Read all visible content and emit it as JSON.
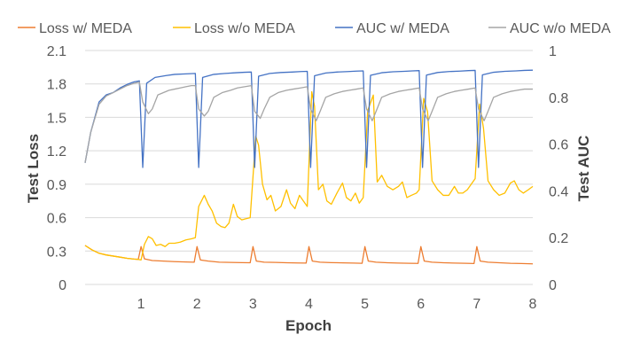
{
  "chart_data": {
    "type": "line",
    "xlabel": "Epoch",
    "ylabel_left": "Test Loss",
    "ylabel_right": "Test AUC",
    "xlim": [
      0,
      8
    ],
    "ylim_left": [
      0,
      2.1
    ],
    "ylim_right": [
      0,
      1
    ],
    "x_ticks": [
      "1",
      "2",
      "3",
      "4",
      "5",
      "6",
      "7",
      "8"
    ],
    "y_left_ticks": [
      "0",
      "0.3",
      "0.6",
      "0.9",
      "1.2",
      "1.5",
      "1.8",
      "2.1"
    ],
    "y_right_ticks": [
      "0",
      "0.2",
      "0.4",
      "0.6",
      "0.8",
      "1"
    ],
    "grid": "horizontal",
    "legend_position": "top",
    "colors": {
      "loss_w": "#ED7D31",
      "loss_wo": "#FFC000",
      "auc_w": "#4472C4",
      "auc_wo": "#A5A5A5",
      "grid": "#D9D9D9"
    },
    "series": [
      {
        "name": "Loss w/ MEDA",
        "axis": "left",
        "color": "#ED7D31",
        "points": [
          [
            0,
            0.35
          ],
          [
            0.125,
            0.31
          ],
          [
            0.25,
            0.28
          ],
          [
            0.375,
            0.265
          ],
          [
            0.5,
            0.255
          ],
          [
            0.625,
            0.245
          ],
          [
            0.75,
            0.235
          ],
          [
            0.875,
            0.228
          ],
          [
            0.95,
            0.225
          ],
          [
            1.0,
            0.34
          ],
          [
            1.06,
            0.23
          ],
          [
            1.2,
            0.215
          ],
          [
            1.4,
            0.21
          ],
          [
            1.6,
            0.205
          ],
          [
            1.8,
            0.202
          ],
          [
            1.95,
            0.2
          ],
          [
            2.0,
            0.34
          ],
          [
            2.06,
            0.22
          ],
          [
            2.2,
            0.21
          ],
          [
            2.4,
            0.2
          ],
          [
            2.6,
            0.198
          ],
          [
            2.8,
            0.196
          ],
          [
            2.95,
            0.195
          ],
          [
            3.0,
            0.34
          ],
          [
            3.06,
            0.21
          ],
          [
            3.2,
            0.2
          ],
          [
            3.4,
            0.198
          ],
          [
            3.6,
            0.195
          ],
          [
            3.8,
            0.193
          ],
          [
            3.95,
            0.192
          ],
          [
            4.0,
            0.34
          ],
          [
            4.06,
            0.21
          ],
          [
            4.2,
            0.2
          ],
          [
            4.4,
            0.196
          ],
          [
            4.6,
            0.194
          ],
          [
            4.8,
            0.192
          ],
          [
            4.95,
            0.19
          ],
          [
            5.0,
            0.34
          ],
          [
            5.06,
            0.21
          ],
          [
            5.2,
            0.2
          ],
          [
            5.4,
            0.195
          ],
          [
            5.6,
            0.192
          ],
          [
            5.8,
            0.19
          ],
          [
            5.95,
            0.189
          ],
          [
            6.0,
            0.34
          ],
          [
            6.06,
            0.21
          ],
          [
            6.2,
            0.2
          ],
          [
            6.4,
            0.195
          ],
          [
            6.6,
            0.192
          ],
          [
            6.8,
            0.19
          ],
          [
            6.95,
            0.188
          ],
          [
            7.0,
            0.34
          ],
          [
            7.06,
            0.21
          ],
          [
            7.2,
            0.2
          ],
          [
            7.4,
            0.195
          ],
          [
            7.6,
            0.19
          ],
          [
            7.8,
            0.188
          ],
          [
            8.0,
            0.185
          ]
        ]
      },
      {
        "name": "Loss w/o MEDA",
        "axis": "left",
        "color": "#FFC000",
        "points": [
          [
            0,
            0.35
          ],
          [
            0.125,
            0.31
          ],
          [
            0.25,
            0.28
          ],
          [
            0.375,
            0.265
          ],
          [
            0.5,
            0.255
          ],
          [
            0.625,
            0.245
          ],
          [
            0.75,
            0.235
          ],
          [
            0.875,
            0.228
          ],
          [
            0.95,
            0.225
          ],
          [
            1.0,
            0.22
          ],
          [
            1.06,
            0.36
          ],
          [
            1.13,
            0.43
          ],
          [
            1.2,
            0.41
          ],
          [
            1.27,
            0.35
          ],
          [
            1.35,
            0.36
          ],
          [
            1.43,
            0.34
          ],
          [
            1.5,
            0.37
          ],
          [
            1.6,
            0.37
          ],
          [
            1.7,
            0.38
          ],
          [
            1.8,
            0.4
          ],
          [
            1.9,
            0.41
          ],
          [
            1.97,
            0.42
          ],
          [
            2.03,
            0.7
          ],
          [
            2.13,
            0.8
          ],
          [
            2.2,
            0.72
          ],
          [
            2.27,
            0.66
          ],
          [
            2.35,
            0.55
          ],
          [
            2.43,
            0.52
          ],
          [
            2.5,
            0.51
          ],
          [
            2.57,
            0.55
          ],
          [
            2.65,
            0.72
          ],
          [
            2.72,
            0.61
          ],
          [
            2.8,
            0.58
          ],
          [
            2.87,
            0.59
          ],
          [
            2.95,
            0.6
          ],
          [
            3.05,
            1.33
          ],
          [
            3.1,
            1.25
          ],
          [
            3.17,
            0.9
          ],
          [
            3.25,
            0.76
          ],
          [
            3.32,
            0.8
          ],
          [
            3.4,
            0.66
          ],
          [
            3.5,
            0.7
          ],
          [
            3.6,
            0.85
          ],
          [
            3.67,
            0.73
          ],
          [
            3.75,
            0.68
          ],
          [
            3.83,
            0.8
          ],
          [
            3.9,
            0.75
          ],
          [
            3.97,
            0.7
          ],
          [
            4.05,
            1.73
          ],
          [
            4.1,
            1.6
          ],
          [
            4.17,
            0.85
          ],
          [
            4.25,
            0.9
          ],
          [
            4.32,
            0.75
          ],
          [
            4.4,
            0.72
          ],
          [
            4.5,
            0.82
          ],
          [
            4.6,
            0.91
          ],
          [
            4.67,
            0.78
          ],
          [
            4.75,
            0.75
          ],
          [
            4.83,
            0.82
          ],
          [
            4.9,
            0.73
          ],
          [
            4.97,
            0.78
          ],
          [
            5.05,
            1.56
          ],
          [
            5.15,
            1.7
          ],
          [
            5.22,
            0.92
          ],
          [
            5.3,
            0.98
          ],
          [
            5.4,
            0.88
          ],
          [
            5.5,
            0.85
          ],
          [
            5.6,
            0.88
          ],
          [
            5.67,
            0.92
          ],
          [
            5.75,
            0.78
          ],
          [
            5.83,
            0.8
          ],
          [
            5.92,
            0.82
          ],
          [
            5.97,
            0.85
          ],
          [
            6.05,
            1.67
          ],
          [
            6.12,
            1.55
          ],
          [
            6.2,
            0.93
          ],
          [
            6.3,
            0.85
          ],
          [
            6.4,
            0.8
          ],
          [
            6.5,
            0.8
          ],
          [
            6.6,
            0.88
          ],
          [
            6.67,
            0.82
          ],
          [
            6.75,
            0.82
          ],
          [
            6.83,
            0.85
          ],
          [
            6.9,
            0.9
          ],
          [
            6.97,
            0.95
          ],
          [
            7.05,
            1.62
          ],
          [
            7.12,
            1.4
          ],
          [
            7.2,
            0.93
          ],
          [
            7.3,
            0.85
          ],
          [
            7.4,
            0.8
          ],
          [
            7.5,
            0.82
          ],
          [
            7.6,
            0.91
          ],
          [
            7.67,
            0.93
          ],
          [
            7.75,
            0.85
          ],
          [
            7.83,
            0.82
          ],
          [
            7.92,
            0.85
          ],
          [
            8.0,
            0.88
          ]
        ]
      },
      {
        "name": "AUC w/ MEDA",
        "axis": "right",
        "color": "#4472C4",
        "points": [
          [
            0,
            0.52
          ],
          [
            0.1,
            0.65
          ],
          [
            0.25,
            0.78
          ],
          [
            0.375,
            0.81
          ],
          [
            0.5,
            0.82
          ],
          [
            0.625,
            0.84
          ],
          [
            0.75,
            0.855
          ],
          [
            0.875,
            0.866
          ],
          [
            0.97,
            0.87
          ],
          [
            1.03,
            0.5
          ],
          [
            1.1,
            0.86
          ],
          [
            1.25,
            0.885
          ],
          [
            1.45,
            0.893
          ],
          [
            1.6,
            0.898
          ],
          [
            1.8,
            0.9
          ],
          [
            1.97,
            0.902
          ],
          [
            2.03,
            0.5
          ],
          [
            2.1,
            0.885
          ],
          [
            2.3,
            0.898
          ],
          [
            2.5,
            0.902
          ],
          [
            2.7,
            0.905
          ],
          [
            2.85,
            0.907
          ],
          [
            2.97,
            0.908
          ],
          [
            3.03,
            0.5
          ],
          [
            3.1,
            0.89
          ],
          [
            3.3,
            0.902
          ],
          [
            3.5,
            0.906
          ],
          [
            3.7,
            0.908
          ],
          [
            3.85,
            0.91
          ],
          [
            3.97,
            0.911
          ],
          [
            4.03,
            0.5
          ],
          [
            4.1,
            0.892
          ],
          [
            4.3,
            0.904
          ],
          [
            4.5,
            0.908
          ],
          [
            4.7,
            0.91
          ],
          [
            4.85,
            0.912
          ],
          [
            4.97,
            0.913
          ],
          [
            5.03,
            0.5
          ],
          [
            5.1,
            0.894
          ],
          [
            5.3,
            0.905
          ],
          [
            5.5,
            0.909
          ],
          [
            5.7,
            0.911
          ],
          [
            5.85,
            0.913
          ],
          [
            5.97,
            0.914
          ],
          [
            6.03,
            0.5
          ],
          [
            6.1,
            0.895
          ],
          [
            6.3,
            0.906
          ],
          [
            6.5,
            0.91
          ],
          [
            6.7,
            0.912
          ],
          [
            6.85,
            0.914
          ],
          [
            6.97,
            0.915
          ],
          [
            7.03,
            0.5
          ],
          [
            7.1,
            0.896
          ],
          [
            7.3,
            0.907
          ],
          [
            7.5,
            0.911
          ],
          [
            7.7,
            0.913
          ],
          [
            7.85,
            0.915
          ],
          [
            8.0,
            0.916
          ]
        ]
      },
      {
        "name": "AUC w/o MEDA",
        "axis": "right",
        "color": "#A5A5A5",
        "points": [
          [
            0,
            0.52
          ],
          [
            0.1,
            0.65
          ],
          [
            0.25,
            0.77
          ],
          [
            0.375,
            0.805
          ],
          [
            0.5,
            0.82
          ],
          [
            0.625,
            0.835
          ],
          [
            0.75,
            0.85
          ],
          [
            0.875,
            0.86
          ],
          [
            0.97,
            0.865
          ],
          [
            1.03,
            0.78
          ],
          [
            1.13,
            0.73
          ],
          [
            1.2,
            0.75
          ],
          [
            1.3,
            0.81
          ],
          [
            1.4,
            0.82
          ],
          [
            1.5,
            0.83
          ],
          [
            1.6,
            0.835
          ],
          [
            1.7,
            0.84
          ],
          [
            1.8,
            0.845
          ],
          [
            1.9,
            0.85
          ],
          [
            1.97,
            0.85
          ],
          [
            2.03,
            0.75
          ],
          [
            2.13,
            0.72
          ],
          [
            2.2,
            0.74
          ],
          [
            2.3,
            0.8
          ],
          [
            2.45,
            0.82
          ],
          [
            2.6,
            0.83
          ],
          [
            2.72,
            0.84
          ],
          [
            2.85,
            0.845
          ],
          [
            2.97,
            0.85
          ],
          [
            3.03,
            0.74
          ],
          [
            3.13,
            0.71
          ],
          [
            3.2,
            0.75
          ],
          [
            3.3,
            0.8
          ],
          [
            3.45,
            0.82
          ],
          [
            3.6,
            0.83
          ],
          [
            3.72,
            0.835
          ],
          [
            3.85,
            0.84
          ],
          [
            3.97,
            0.845
          ],
          [
            4.03,
            0.75
          ],
          [
            4.13,
            0.7
          ],
          [
            4.2,
            0.74
          ],
          [
            4.3,
            0.8
          ],
          [
            4.45,
            0.815
          ],
          [
            4.6,
            0.825
          ],
          [
            4.72,
            0.83
          ],
          [
            4.85,
            0.835
          ],
          [
            4.97,
            0.84
          ],
          [
            5.03,
            0.75
          ],
          [
            5.13,
            0.7
          ],
          [
            5.2,
            0.74
          ],
          [
            5.3,
            0.8
          ],
          [
            5.45,
            0.815
          ],
          [
            5.6,
            0.825
          ],
          [
            5.72,
            0.83
          ],
          [
            5.85,
            0.835
          ],
          [
            5.97,
            0.84
          ],
          [
            6.03,
            0.75
          ],
          [
            6.13,
            0.7
          ],
          [
            6.2,
            0.74
          ],
          [
            6.3,
            0.8
          ],
          [
            6.45,
            0.815
          ],
          [
            6.6,
            0.825
          ],
          [
            6.72,
            0.83
          ],
          [
            6.85,
            0.835
          ],
          [
            6.97,
            0.84
          ],
          [
            7.03,
            0.75
          ],
          [
            7.13,
            0.7
          ],
          [
            7.2,
            0.74
          ],
          [
            7.3,
            0.8
          ],
          [
            7.45,
            0.815
          ],
          [
            7.6,
            0.825
          ],
          [
            7.72,
            0.83
          ],
          [
            7.85,
            0.835
          ],
          [
            8.0,
            0.835
          ]
        ]
      }
    ]
  }
}
